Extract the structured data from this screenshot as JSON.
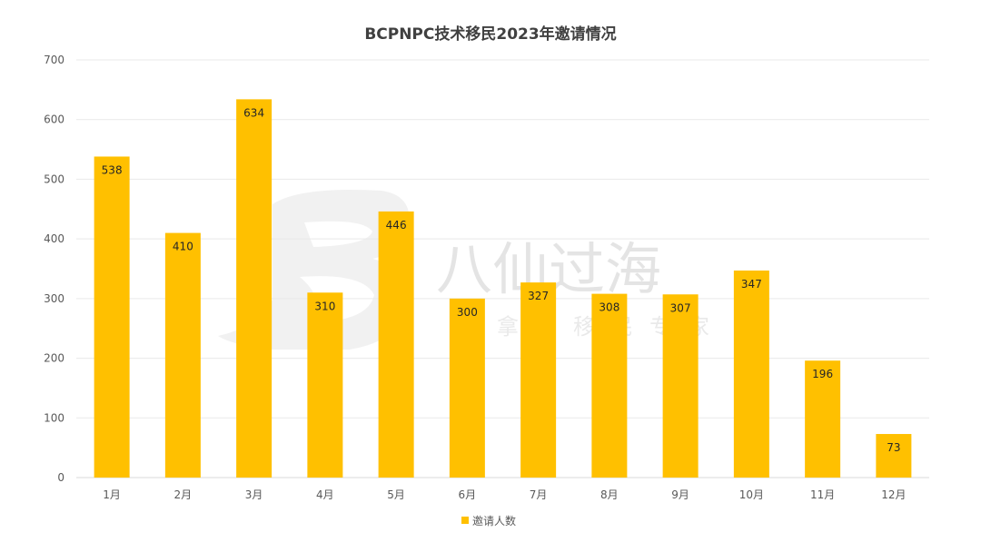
{
  "chart_data": {
    "type": "bar",
    "title": "BCPNPC技术移民2023年邀请情况",
    "categories": [
      "1月",
      "2月",
      "3月",
      "4月",
      "5月",
      "6月",
      "7月",
      "8月",
      "9月",
      "10月",
      "11月",
      "12月"
    ],
    "series": [
      {
        "name": "邀请人数",
        "values": [
          538,
          410,
          634,
          310,
          446,
          300,
          327,
          308,
          307,
          347,
          196,
          73
        ]
      }
    ],
    "ylim": [
      0,
      700
    ],
    "yticks": [
      0,
      100,
      200,
      300,
      400,
      500,
      600,
      700
    ],
    "grid": true,
    "legend_position": "bottom",
    "bar_color": "#FFC000"
  },
  "watermark": {
    "main_text": "八仙过海",
    "sub_text": "加拿大移民专家"
  }
}
